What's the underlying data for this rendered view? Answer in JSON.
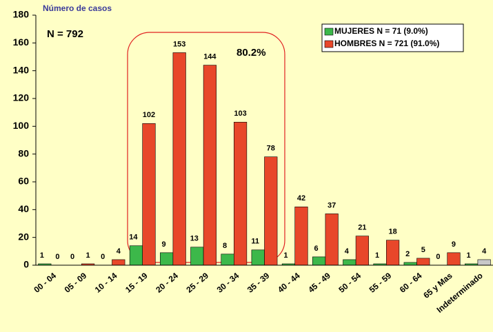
{
  "chart_data": {
    "type": "bar",
    "y_label": "Número de casos",
    "annotations": [
      "N = 792",
      "80.2%"
    ],
    "categories": [
      "00 - 04",
      "05 - 09",
      "10 - 14",
      "15 - 19",
      "20 - 24",
      "25 - 29",
      "30 - 34",
      "35 - 39",
      "40 - 44",
      "45 - 49",
      "50 - 54",
      "55 - 59",
      "60 - 64",
      "65 y Mas",
      "Indeterminado"
    ],
    "series": [
      {
        "name": "MUJERES N = 71 (9.0%)",
        "color": "#3cb84a",
        "values": [
          1,
          0,
          0,
          14,
          9,
          13,
          8,
          11,
          1,
          6,
          4,
          1,
          2,
          0,
          1
        ]
      },
      {
        "name": "HOMBRES N = 721 (91.0%)",
        "color": "#e8472a",
        "values": [
          0,
          1,
          4,
          102,
          153,
          144,
          103,
          78,
          42,
          37,
          21,
          18,
          5,
          9,
          4
        ],
        "colors": [
          "#e8472a",
          "#e8472a",
          "#e8472a",
          "#e8472a",
          "#e8472a",
          "#e8472a",
          "#e8472a",
          "#e8472a",
          "#e8472a",
          "#e8472a",
          "#e8472a",
          "#e8472a",
          "#e8472a",
          "#e8472a",
          "#c8c8c8"
        ]
      }
    ],
    "ylim": [
      0,
      180
    ],
    "yticks": [
      0,
      20,
      40,
      60,
      80,
      100,
      120,
      140,
      160,
      180
    ],
    "legend": "top-right"
  }
}
